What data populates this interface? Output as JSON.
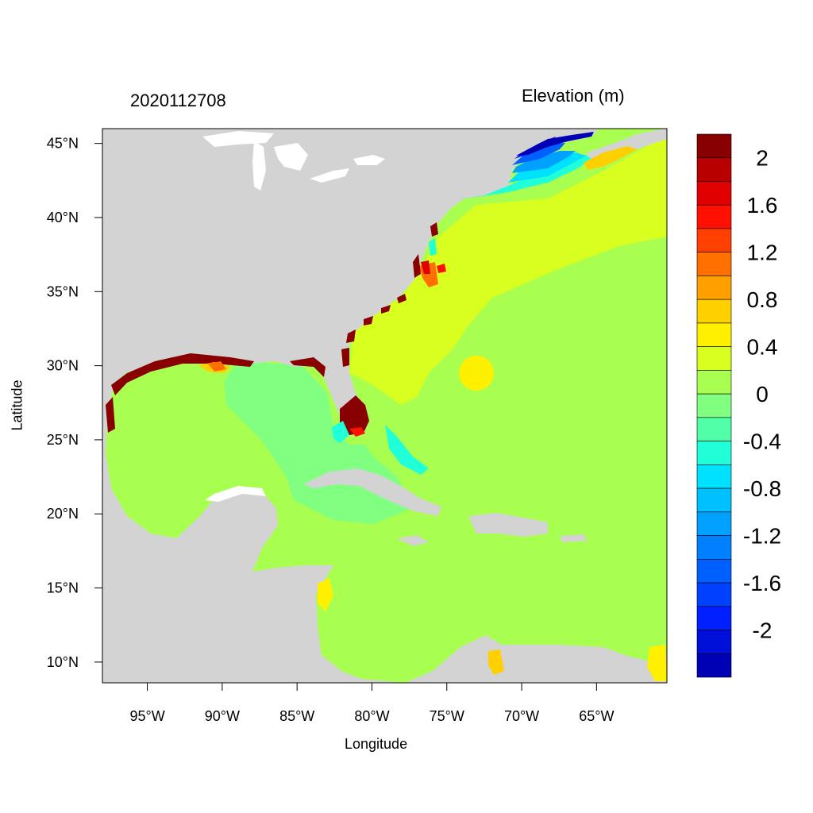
{
  "header": {
    "date_label": "2020112708",
    "variable_label": "Elevation (m)"
  },
  "axes": {
    "xlabel": "Longitude",
    "ylabel": "Latitude",
    "lon_range": [
      -98,
      -60.3
    ],
    "lat_range": [
      8.6,
      46
    ],
    "x_ticks": [
      {
        "lon": -95,
        "label": "95°W"
      },
      {
        "lon": -90,
        "label": "90°W"
      },
      {
        "lon": -85,
        "label": "85°W"
      },
      {
        "lon": -80,
        "label": "80°W"
      },
      {
        "lon": -75,
        "label": "75°W"
      },
      {
        "lon": -70,
        "label": "70°W"
      },
      {
        "lon": -65,
        "label": "65°W"
      }
    ],
    "y_ticks": [
      {
        "lat": 45,
        "label": "45°N"
      },
      {
        "lat": 40,
        "label": "40°N"
      },
      {
        "lat": 35,
        "label": "35°N"
      },
      {
        "lat": 30,
        "label": "30°N"
      },
      {
        "lat": 25,
        "label": "25°N"
      },
      {
        "lat": 20,
        "label": "20°N"
      },
      {
        "lat": 15,
        "label": "15°N"
      },
      {
        "lat": 10,
        "label": "10°N"
      }
    ]
  },
  "colorbar": {
    "colors": [
      "#0000b4",
      "#0010d9",
      "#0020ff",
      "#0040ff",
      "#0060ff",
      "#0080ff",
      "#00a0ff",
      "#00c0ff",
      "#00e0ff",
      "#20ffd8",
      "#50ffa8",
      "#80ff80",
      "#a8ff50",
      "#d8ff20",
      "#fff000",
      "#ffd000",
      "#ffa000",
      "#ff7000",
      "#ff4000",
      "#ff1000",
      "#e00000",
      "#b80000",
      "#880000"
    ],
    "labels": [
      "2",
      "1.6",
      "1.2",
      "0.8",
      "0.4",
      "0",
      "-0.4",
      "-0.8",
      "-1.2",
      "-1.6",
      "-2"
    ]
  },
  "colors": {
    "land": "#d3d3d3",
    "lakes": "#ffffff",
    "ocean_base": "#a8ff50"
  }
}
